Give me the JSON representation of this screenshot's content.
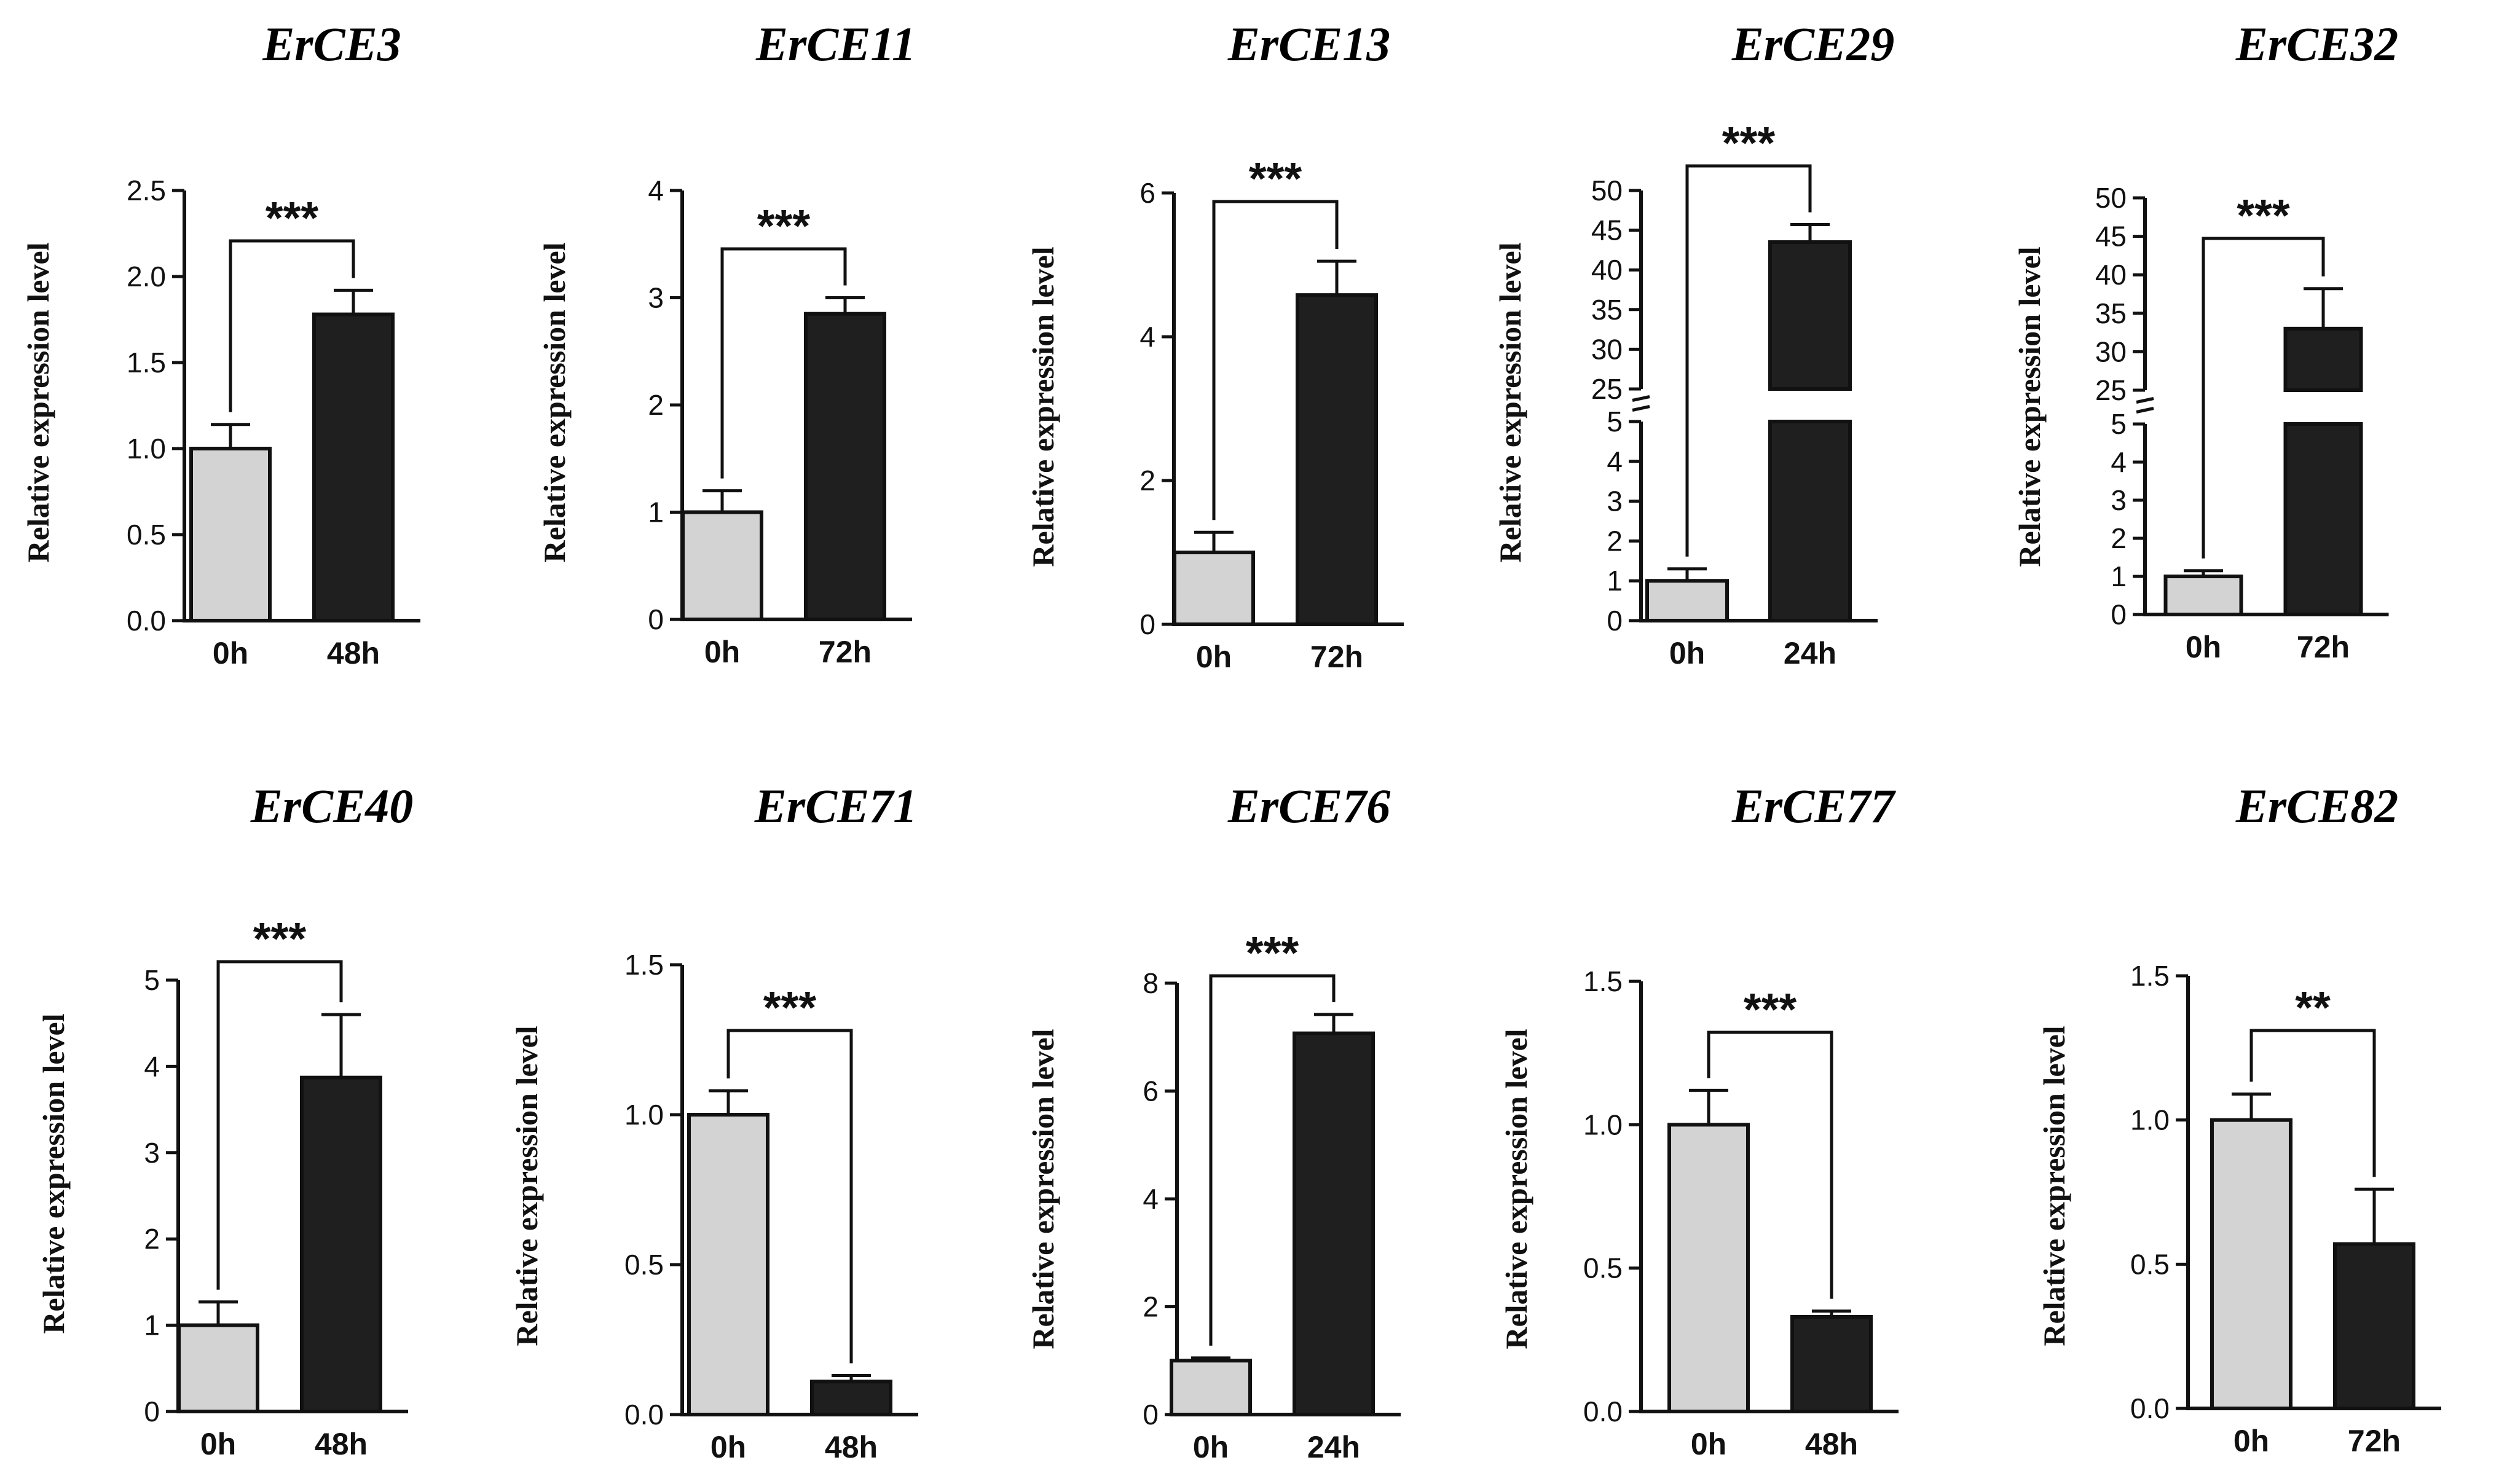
{
  "figure": {
    "bar_colors": {
      "control": "#d3d3d3",
      "treated": "#1f1f1f",
      "stroke": "#111111"
    }
  },
  "chart_data": [
    {
      "type": "bar",
      "title": "ErCE3",
      "ylabel": "Relative expression level",
      "categories": [
        "0h",
        "48h"
      ],
      "values": [
        1.0,
        1.78
      ],
      "errors": [
        0.14,
        0.14
      ],
      "ylim": [
        0,
        2.5
      ],
      "yticks": [
        "0.0",
        "0.5",
        "1.0",
        "1.5",
        "2.0",
        "2.5"
      ],
      "significance": "***"
    },
    {
      "type": "bar",
      "title": "ErCE11",
      "ylabel": "Relative expression level",
      "categories": [
        "0h",
        "72h"
      ],
      "values": [
        1.0,
        2.85
      ],
      "errors": [
        0.2,
        0.15
      ],
      "ylim": [
        0,
        4
      ],
      "yticks": [
        "0",
        "1",
        "2",
        "3",
        "4"
      ],
      "significance": "***"
    },
    {
      "type": "bar",
      "title": "ErCE13",
      "ylabel": "Relative expression level",
      "categories": [
        "0h",
        "72h"
      ],
      "values": [
        1.0,
        4.58
      ],
      "errors": [
        0.28,
        0.47
      ],
      "ylim": [
        0,
        6
      ],
      "yticks": [
        "0",
        "2",
        "4",
        "6"
      ],
      "significance": "***"
    },
    {
      "type": "bar",
      "title": "ErCE29",
      "ylabel": "Relative expression level",
      "categories": [
        "0h",
        "24h"
      ],
      "values": [
        1.0,
        43.5
      ],
      "errors": [
        0.3,
        2.2
      ],
      "broken_axis": {
        "lower": [
          0,
          5
        ],
        "upper": [
          25,
          50
        ]
      },
      "yticks_lower": [
        "0",
        "1",
        "2",
        "3",
        "4",
        "5"
      ],
      "yticks_upper": [
        "25",
        "30",
        "35",
        "40",
        "45",
        "50"
      ],
      "significance": "***"
    },
    {
      "type": "bar",
      "title": "ErCE32",
      "ylabel": "Relative expression level",
      "categories": [
        "0h",
        "72h"
      ],
      "values": [
        1.0,
        33.0
      ],
      "errors": [
        0.15,
        5.2
      ],
      "broken_axis": {
        "lower": [
          0,
          5
        ],
        "upper": [
          25,
          50
        ]
      },
      "yticks_lower": [
        "0",
        "1",
        "2",
        "3",
        "4",
        "5"
      ],
      "yticks_upper": [
        "25",
        "30",
        "35",
        "40",
        "45",
        "50"
      ],
      "significance": "***"
    },
    {
      "type": "bar",
      "title": "ErCE40",
      "ylabel": "Relative expression level",
      "categories": [
        "0h",
        "48h"
      ],
      "values": [
        1.0,
        3.87
      ],
      "errors": [
        0.27,
        0.73
      ],
      "ylim": [
        0,
        5
      ],
      "yticks": [
        "0",
        "1",
        "2",
        "3",
        "4",
        "5"
      ],
      "significance": "***"
    },
    {
      "type": "bar",
      "title": "ErCE71",
      "ylabel": "Relative expression level",
      "categories": [
        "0h",
        "48h"
      ],
      "values": [
        1.0,
        0.11
      ],
      "errors": [
        0.08,
        0.02
      ],
      "ylim": [
        0,
        1.5
      ],
      "yticks": [
        "0.0",
        "0.5",
        "1.0",
        "1.5"
      ],
      "significance": "***"
    },
    {
      "type": "bar",
      "title": "ErCE76",
      "ylabel": "Relative expression level",
      "categories": [
        "0h",
        "24h"
      ],
      "values": [
        1.0,
        7.07
      ],
      "errors": [
        0.05,
        0.35
      ],
      "ylim": [
        0,
        8
      ],
      "yticks": [
        "0",
        "2",
        "4",
        "6",
        "8"
      ],
      "significance": "***"
    },
    {
      "type": "bar",
      "title": "ErCE77",
      "ylabel": "Relative expression level",
      "categories": [
        "0h",
        "48h"
      ],
      "values": [
        1.0,
        0.33
      ],
      "errors": [
        0.12,
        0.02
      ],
      "ylim": [
        0,
        1.5
      ],
      "yticks": [
        "0.0",
        "0.5",
        "1.0",
        "1.5"
      ],
      "significance": "***"
    },
    {
      "type": "bar",
      "title": "ErCE82",
      "ylabel": "Relative expression level",
      "categories": [
        "0h",
        "72h"
      ],
      "values": [
        1.0,
        0.57
      ],
      "errors": [
        0.09,
        0.19
      ],
      "ylim": [
        0,
        1.5
      ],
      "yticks": [
        "0.0",
        "0.5",
        "1.0",
        "1.5"
      ],
      "significance": "**"
    }
  ]
}
